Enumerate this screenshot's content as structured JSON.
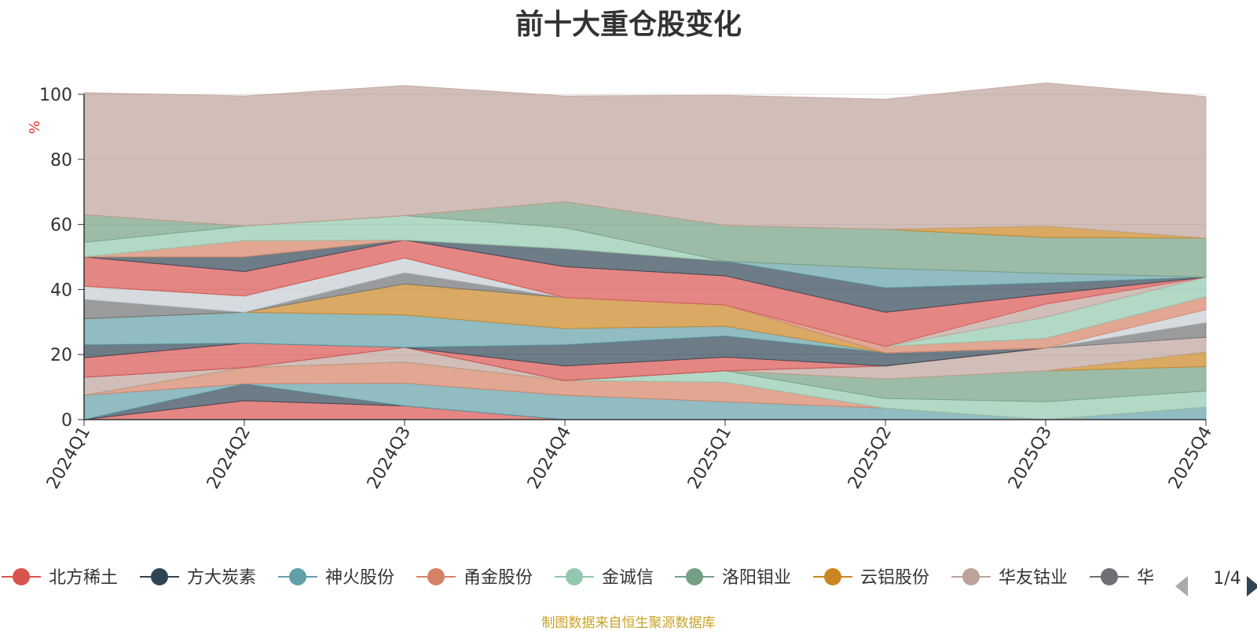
{
  "chart_data": {
    "type": "area",
    "title": "前十大重仓股变化",
    "ylabel": "%",
    "ylim": [
      0,
      100
    ],
    "yticks": [
      0,
      20,
      40,
      60,
      80,
      100
    ],
    "grid": true,
    "legend_position": "bottom",
    "categories": [
      "2024Q1",
      "2024Q2",
      "2024Q3",
      "2024Q4",
      "2025Q1",
      "2025Q2",
      "2025Q3",
      "2025Q4"
    ],
    "series": [
      {
        "name": "北方稀土",
        "color": "#d9534f",
        "values": [
          0,
          5.8,
          4.2,
          0,
          0,
          0,
          0,
          0
        ]
      },
      {
        "name": "方大炭素",
        "color": "#2f4554",
        "values": [
          0,
          5.2,
          0,
          0,
          0,
          0,
          0,
          0
        ]
      },
      {
        "name": "神火股份",
        "color": "#61a0a8",
        "values": [
          7.5,
          0,
          7.0,
          7.5,
          5.5,
          3.5,
          0,
          3.8
        ]
      },
      {
        "name": "甬金股份",
        "color": "#d48265",
        "values": [
          0,
          5.0,
          6.5,
          4.5,
          6.0,
          0,
          0,
          0
        ]
      },
      {
        "name": "金诚信",
        "color": "#91c7ae",
        "values": [
          0,
          0,
          0,
          0,
          3.5,
          3.0,
          5.5,
          5.0
        ]
      },
      {
        "name": "洛阳钼业",
        "color": "#749f83",
        "values": [
          0,
          0,
          0,
          0,
          0,
          6.0,
          9.5,
          7.5
        ]
      },
      {
        "name": "云铝股份",
        "color": "#ca8622",
        "values": [
          0,
          0,
          0,
          0,
          0,
          0,
          0,
          4.5
        ]
      },
      {
        "name": "华友钴业",
        "color": "#bda29a",
        "values": [
          5.5,
          0,
          4.5,
          0,
          0,
          4.0,
          7.0,
          4.5
        ]
      },
      {
        "name": "华",
        "color": "#6e7074",
        "values": [
          0,
          0,
          0,
          0,
          0,
          0,
          0,
          4.5
        ]
      },
      {
        "name": "",
        "color": "#d9534f",
        "values": [
          6.0,
          7.5,
          0,
          4.5,
          4.2,
          0,
          0,
          0
        ]
      },
      {
        "name": "",
        "color": "#2f4554",
        "values": [
          4.0,
          0,
          0,
          6.5,
          6.5,
          4.0,
          0,
          0
        ]
      },
      {
        "name": "",
        "color": "#61a0a8",
        "values": [
          8.0,
          9.5,
          10.0,
          5.0,
          3.0,
          0,
          0,
          0
        ]
      },
      {
        "name": "",
        "color": "#ca8622",
        "values": [
          0,
          0,
          9.5,
          9.5,
          6.5,
          0,
          0,
          0
        ]
      },
      {
        "name": "",
        "color": "#6e7074",
        "values": [
          6.0,
          0,
          3.5,
          0,
          0,
          0,
          0,
          0
        ]
      },
      {
        "name": "",
        "color": "#c4ccd3",
        "values": [
          4.0,
          5.0,
          4.5,
          0,
          0,
          0,
          0,
          4.0
        ]
      },
      {
        "name": "",
        "color": "#d48265",
        "values": [
          0,
          0,
          0,
          0,
          0,
          2.0,
          3.0,
          4.0
        ]
      },
      {
        "name": "",
        "color": "#91c7ae",
        "values": [
          0,
          0,
          0,
          0,
          0,
          0,
          6.5,
          6.0
        ]
      },
      {
        "name": "",
        "color": "#bda29a",
        "values": [
          0,
          0,
          0,
          0,
          0,
          0,
          4.0,
          0
        ]
      },
      {
        "name": "",
        "color": "#d9534f",
        "values": [
          9.0,
          7.5,
          5.5,
          9.5,
          9.0,
          10.5,
          3.0,
          0
        ]
      },
      {
        "name": "",
        "color": "#2f4554",
        "values": [
          0,
          4.5,
          0,
          5.5,
          4.5,
          7.5,
          3.5,
          0
        ]
      },
      {
        "name": "",
        "color": "#61a0a8",
        "values": [
          0,
          0,
          0,
          0,
          0,
          6.0,
          3.0,
          0
        ]
      },
      {
        "name": "",
        "color": "#d48265",
        "values": [
          0,
          5.0,
          0,
          0,
          0,
          0,
          0,
          0
        ]
      },
      {
        "name": "",
        "color": "#91c7ae",
        "values": [
          4.5,
          4.5,
          7.5,
          6.5,
          0,
          0,
          0,
          0
        ]
      },
      {
        "name": "",
        "color": "#749f83",
        "values": [
          8.5,
          0,
          0,
          8.0,
          11.0,
          12.0,
          11.0,
          12.0
        ]
      },
      {
        "name": "",
        "color": "#ca8622",
        "values": [
          0,
          0,
          0,
          0,
          0,
          0,
          3.5,
          0
        ]
      },
      {
        "name": "",
        "color": "#bda29a",
        "values": [
          37.5,
          40.0,
          40.0,
          32.5,
          40.0,
          40.0,
          44.0,
          43.5
        ]
      }
    ]
  },
  "legend_page": "1/4",
  "source_note": "制图数据来自恒生聚源数据库"
}
